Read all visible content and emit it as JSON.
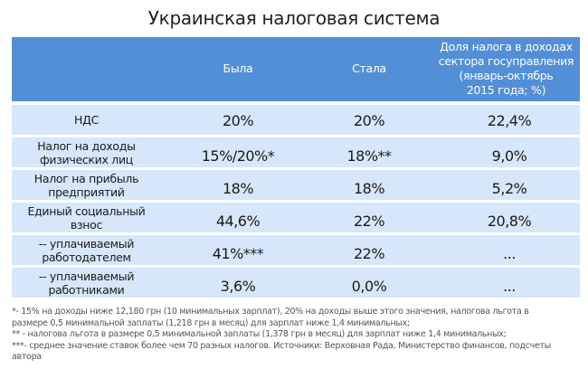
{
  "title": "Украинская налоговая система",
  "headers": [
    "",
    "Была",
    "Стала",
    "Доля налога в доходах сектора госуправления (январь-октябрь 2015 года; %)"
  ],
  "header_lines": [
    "Доля налога в доходах",
    "сектора госуправления",
    "(январь-октябрь",
    "2015 года; %)"
  ],
  "rows": [
    {
      "label": "НДС",
      "label_lines": [
        "НДС"
      ],
      "was": "20%",
      "now": "20%",
      "share": "22,4%"
    },
    {
      "label": "Налог на доходы физических лиц",
      "label_lines": [
        "Налог на доходы",
        "физических лиц"
      ],
      "was": "15%/20%*",
      "now": "18%**",
      "share": "9,0%"
    },
    {
      "label": "Налог на прибыль предприятий",
      "label_lines": [
        "Налог на прибыль",
        "предприятий"
      ],
      "was": "18%",
      "now": "18%",
      "share": "5,2%"
    },
    {
      "label": "Единый социальный взнос",
      "label_lines": [
        "Единый социальный",
        "взнос"
      ],
      "was": "44,6%",
      "now": "22%",
      "share": "20,8%"
    },
    {
      "label": "-- уплачиваемый работодателем",
      "label_lines": [
        "-- уплачиваемый",
        "работодателем"
      ],
      "was": "41%***",
      "now": "22%",
      "share": "..."
    },
    {
      "label": "-- уплачиваемый работниками",
      "label_lines": [
        "-- уплачиваемый",
        "работниками"
      ],
      "was": "3,6%",
      "now": "0,0%",
      "share": "..."
    }
  ],
  "footnotes": [
    "*- 15% на доходы ниже 12,180 грн (10 минимальных зарплат), 20% на доходы выше этого значения, налогова льгота в размере 0,5 минимальной заплаты (1,218 грн в месяц) для зарплат ниже 1,4 минимальных;",
    "** - налогова льгота в размере 0,5 минимальной заплаты (1,378 грн в месяц) для зарплат ниже 1,4 минимальных;",
    "***- среднее значение ставок более чем 70 разных налогов. Источники: Верховная Рада, Министерство финансов, подсчеты автора"
  ],
  "colors": {
    "header_bg": "#528fd6",
    "row_bg": "#d6e7fc"
  }
}
